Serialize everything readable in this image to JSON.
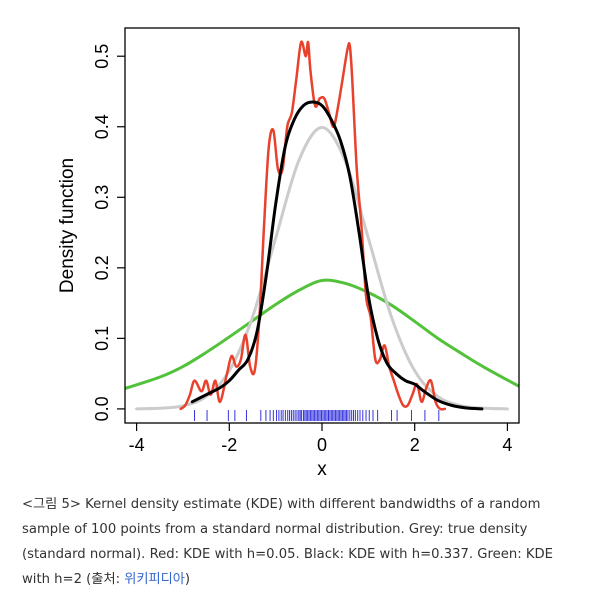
{
  "chart_data": {
    "type": "line",
    "xlabel": "x",
    "ylabel": "Density function",
    "xlim": [
      -4.25,
      4.25
    ],
    "ylim": [
      -0.02,
      0.54
    ],
    "xticks": [
      {
        "value": -4,
        "label": "-4"
      },
      {
        "value": -2,
        "label": "-2"
      },
      {
        "value": 0,
        "label": "0"
      },
      {
        "value": 2,
        "label": "2"
      },
      {
        "value": 4,
        "label": "4"
      }
    ],
    "yticks": [
      {
        "value": 0.0,
        "label": "0.0"
      },
      {
        "value": 0.1,
        "label": "0.1"
      },
      {
        "value": 0.2,
        "label": "0.2"
      },
      {
        "value": 0.3,
        "label": "0.3"
      },
      {
        "value": 0.4,
        "label": "0.4"
      },
      {
        "value": 0.5,
        "label": "0.5"
      }
    ],
    "grid": false,
    "series": [
      {
        "color": "#52c23a",
        "width": 3,
        "x": [
          -4.25,
          -3.5,
          -3,
          -2.5,
          -2,
          -1.5,
          -1,
          -0.5,
          0,
          0.5,
          1,
          1.5,
          2,
          2.5,
          3,
          3.5,
          4.25
        ],
        "y": [
          0.029,
          0.045,
          0.06,
          0.08,
          0.102,
          0.125,
          0.148,
          0.168,
          0.182,
          0.178,
          0.165,
          0.147,
          0.124,
          0.1,
          0.079,
          0.059,
          0.032
        ]
      },
      {
        "color": "#cccccc",
        "width": 3,
        "x": [
          -4,
          -3.5,
          -3,
          -2.5,
          -2,
          -1.5,
          -1,
          -0.5,
          0,
          0.5,
          1,
          1.5,
          2,
          2.5,
          3,
          3.5,
          4
        ],
        "y": [
          0.0001,
          0.0009,
          0.0044,
          0.0175,
          0.054,
          0.13,
          0.242,
          0.352,
          0.399,
          0.352,
          0.242,
          0.13,
          0.054,
          0.0175,
          0.0044,
          0.0009,
          0.0001
        ]
      },
      {
        "color": "#e8412c",
        "width": 2.5,
        "x": [
          -3.05,
          -2.95,
          -2.85,
          -2.75,
          -2.6,
          -2.5,
          -2.4,
          -2.3,
          -2.2,
          -2.05,
          -1.95,
          -1.85,
          -1.75,
          -1.65,
          -1.55,
          -1.45,
          -1.35,
          -1.25,
          -1.15,
          -1.05,
          -0.95,
          -0.85,
          -0.75,
          -0.65,
          -0.55,
          -0.45,
          -0.35,
          -0.3,
          -0.25,
          -0.15,
          -0.05,
          0.05,
          0.15,
          0.25,
          0.35,
          0.45,
          0.55,
          0.6,
          0.65,
          0.75,
          0.85,
          0.95,
          1.05,
          1.15,
          1.25,
          1.35,
          1.45,
          1.55,
          1.65,
          1.75,
          1.85,
          1.95,
          2.05,
          2.15,
          2.25,
          2.35,
          2.45,
          2.55,
          2.65
        ],
        "y": [
          0.0,
          0.005,
          0.02,
          0.04,
          0.025,
          0.04,
          0.02,
          0.04,
          0.01,
          0.05,
          0.075,
          0.06,
          0.07,
          0.105,
          0.06,
          0.055,
          0.13,
          0.26,
          0.37,
          0.395,
          0.34,
          0.34,
          0.4,
          0.42,
          0.47,
          0.52,
          0.5,
          0.52,
          0.48,
          0.43,
          0.44,
          0.44,
          0.42,
          0.4,
          0.43,
          0.47,
          0.51,
          0.515,
          0.47,
          0.34,
          0.26,
          0.16,
          0.13,
          0.07,
          0.07,
          0.09,
          0.06,
          0.04,
          0.02,
          0.005,
          0.005,
          0.02,
          0.035,
          0.01,
          0.03,
          0.04,
          0.01,
          0.0,
          0.0
        ]
      },
      {
        "color": "#000000",
        "width": 3,
        "x": [
          -2.8,
          -2.5,
          -2.2,
          -2,
          -1.8,
          -1.6,
          -1.4,
          -1.2,
          -1,
          -0.8,
          -0.6,
          -0.4,
          -0.2,
          0,
          0.2,
          0.4,
          0.6,
          0.8,
          1,
          1.2,
          1.4,
          1.6,
          1.8,
          2,
          2.2,
          2.5,
          2.8,
          3.1,
          3.45
        ],
        "y": [
          0.01,
          0.02,
          0.03,
          0.04,
          0.055,
          0.07,
          0.11,
          0.19,
          0.29,
          0.37,
          0.41,
          0.43,
          0.435,
          0.43,
          0.41,
          0.38,
          0.33,
          0.25,
          0.16,
          0.1,
          0.065,
          0.05,
          0.04,
          0.035,
          0.025,
          0.012,
          0.005,
          0.0015,
          0.0
        ]
      }
    ],
    "rug": [
      -2.75,
      -2.48,
      -2.02,
      -1.88,
      -1.63,
      -1.32,
      -1.21,
      -1.12,
      -1.05,
      -0.98,
      -0.93,
      -0.88,
      -0.84,
      -0.79,
      -0.74,
      -0.7,
      -0.66,
      -0.62,
      -0.58,
      -0.54,
      -0.5,
      -0.47,
      -0.44,
      -0.4,
      -0.37,
      -0.34,
      -0.31,
      -0.28,
      -0.25,
      -0.22,
      -0.19,
      -0.16,
      -0.13,
      -0.1,
      -0.07,
      -0.04,
      -0.01,
      0.02,
      0.05,
      0.08,
      0.11,
      0.14,
      0.17,
      0.2,
      0.23,
      0.26,
      0.29,
      0.32,
      0.35,
      0.38,
      0.41,
      0.44,
      0.47,
      0.5,
      0.53,
      0.56,
      0.6,
      0.64,
      0.68,
      0.72,
      0.77,
      0.82,
      0.88,
      0.95,
      1.02,
      1.1,
      1.2,
      1.5,
      1.62,
      1.93,
      2.22,
      2.52
    ],
    "rug_color": "#3333dd"
  },
  "caption": {
    "text": "<그림 5> Kernel density estimate (KDE) with different bandwidths of a random sample of 100 points from a standard normal distribution. Grey: true density (standard normal). Red: KDE with h=0.05. Black: KDE with h=0.337. Green: KDE with h=2 (출처: ",
    "source": "위키피디아",
    "close": ")"
  }
}
